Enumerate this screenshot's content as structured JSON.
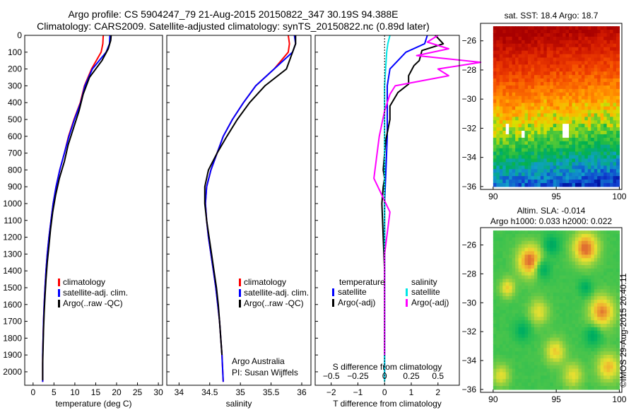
{
  "header": {
    "title_line1": "Argo profile: CS 5904247_79 21-Aug-2015 20150822_347 30.19S 94.388E",
    "title_line2": "Climatology: CARS2009. Satellite-adjusted climatology: synTS_20150822.nc (0.89d later)"
  },
  "colors": {
    "climatology": "#ff0000",
    "satellite": "#0000ff",
    "argo": "#000000",
    "s_satellite": "#00e5e5",
    "s_argo": "#ff00ff"
  },
  "chart_data": [
    {
      "type": "line",
      "id": "temperature",
      "xlabel": "temperature (deg C)",
      "ylabel": "",
      "xlim": [
        -2,
        31
      ],
      "ylim": [
        2080,
        0
      ],
      "xticks": [
        0,
        5,
        10,
        15,
        20,
        25,
        30
      ],
      "yticks": [
        0,
        100,
        200,
        300,
        400,
        500,
        600,
        700,
        800,
        900,
        1000,
        1100,
        1200,
        1300,
        1400,
        1500,
        1600,
        1700,
        1800,
        1900,
        2000
      ],
      "legend": [
        "climatology",
        "satellite-adj. clim.",
        "Argo(..raw -QC)"
      ],
      "series": [
        {
          "name": "climatology",
          "color": "#ff0000",
          "x": [
            16.8,
            16.7,
            16.3,
            14.0,
            12.3,
            11.3,
            9.8,
            8.5,
            7.5,
            6.4,
            5.5,
            4.8,
            4.3,
            3.8,
            3.4,
            3.1,
            2.85,
            2.65,
            2.5,
            2.4,
            2.3,
            2.3
          ],
          "y": [
            0,
            50,
            100,
            200,
            300,
            400,
            500,
            600,
            700,
            800,
            900,
            1000,
            1100,
            1200,
            1300,
            1400,
            1500,
            1600,
            1700,
            1800,
            1900,
            2060
          ]
        },
        {
          "name": "satellite-adj. clim.",
          "color": "#0000ff",
          "x": [
            18.4,
            18.3,
            17.5,
            14.2,
            12.4,
            11.4,
            9.9,
            8.6,
            7.5,
            6.4,
            5.5,
            4.8,
            4.3,
            3.8,
            3.4,
            3.1,
            2.85,
            2.65,
            2.5,
            2.4,
            2.3,
            2.3
          ],
          "y": [
            0,
            50,
            100,
            200,
            300,
            400,
            500,
            600,
            700,
            800,
            900,
            1000,
            1100,
            1200,
            1300,
            1400,
            1500,
            1600,
            1700,
            1800,
            1900,
            2060
          ]
        },
        {
          "name": "Argo(..raw -QC)",
          "color": "#000000",
          "x": [
            18.7,
            18.6,
            18.0,
            16.5,
            13.5,
            12.0,
            11.0,
            9.7,
            8.4,
            7.5,
            6.3,
            5.4,
            4.7,
            4.2,
            3.8,
            3.4,
            3.1,
            2.85,
            2.65,
            2.5,
            2.4,
            2.3,
            2.3
          ],
          "y": [
            0,
            30,
            80,
            150,
            250,
            350,
            450,
            550,
            650,
            750,
            850,
            950,
            1050,
            1150,
            1250,
            1350,
            1450,
            1550,
            1650,
            1750,
            1850,
            1950,
            2050
          ]
        }
      ]
    },
    {
      "type": "line",
      "id": "salinity",
      "xlabel": "salinity",
      "ylabel": "",
      "xlim": [
        33.8,
        36.15
      ],
      "ylim": [
        2080,
        0
      ],
      "xticks": [
        34,
        34.5,
        35,
        35.5,
        36
      ],
      "legend": [
        "climatology",
        "satellite-adj. clim.",
        "Argo(..raw -QC)"
      ],
      "annotations": [
        "Argo Australia",
        "PI: Susan Wijffels"
      ],
      "series": [
        {
          "name": "climatology",
          "color": "#ff0000",
          "x": [
            35.78,
            35.8,
            35.78,
            35.55,
            35.25,
            35.05,
            34.87,
            34.72,
            34.62,
            34.52,
            34.45,
            34.43,
            34.45,
            34.48,
            34.52,
            34.56,
            34.6,
            34.63,
            34.66,
            34.68,
            34.7,
            34.72
          ],
          "y": [
            0,
            50,
            100,
            200,
            300,
            400,
            500,
            600,
            700,
            800,
            900,
            1000,
            1100,
            1200,
            1300,
            1400,
            1500,
            1600,
            1700,
            1800,
            1900,
            2060
          ]
        },
        {
          "name": "satellite-adj. clim.",
          "color": "#0000ff",
          "x": [
            35.88,
            35.9,
            35.85,
            35.55,
            35.25,
            35.05,
            34.87,
            34.72,
            34.62,
            34.52,
            34.45,
            34.43,
            34.45,
            34.48,
            34.52,
            34.56,
            34.6,
            34.63,
            34.66,
            34.68,
            34.7,
            34.72
          ],
          "y": [
            0,
            50,
            100,
            200,
            300,
            400,
            500,
            600,
            700,
            800,
            900,
            1000,
            1100,
            1200,
            1300,
            1400,
            1500,
            1600,
            1700,
            1800,
            1900,
            2060
          ]
        },
        {
          "name": "Argo(..raw -QC)",
          "color": "#000000",
          "x": [
            35.9,
            35.9,
            35.85,
            35.75,
            35.4,
            35.15,
            34.95,
            34.78,
            34.62,
            34.48,
            34.42,
            34.42,
            34.45,
            34.49,
            34.53,
            34.57,
            34.61,
            34.64,
            34.66,
            34.68,
            34.7
          ],
          "y": [
            0,
            50,
            100,
            200,
            300,
            400,
            500,
            600,
            700,
            800,
            900,
            1000,
            1100,
            1200,
            1300,
            1400,
            1500,
            1600,
            1700,
            1800,
            1900
          ]
        }
      ]
    },
    {
      "type": "line",
      "id": "difference",
      "xlabel": "T difference from climatology",
      "xlabel_top": "S difference from climatology",
      "xlim": [
        -2.6,
        2.8
      ],
      "ylim": [
        2080,
        0
      ],
      "xticks": [
        -2,
        -1,
        0,
        1,
        2
      ],
      "xticks_top": [
        -0.5,
        -0.25,
        0,
        0.25,
        0.5
      ],
      "legend_headers": [
        "temperature",
        "salinity"
      ],
      "legend": [
        "satellite",
        "Argo(-adj)",
        "satellite",
        "Argo(-adj)"
      ],
      "series": [
        {
          "name": "T satellite",
          "color": "#0000ff",
          "x": [
            1.6,
            1.5,
            0.8,
            0.2,
            0.1,
            0.1,
            0.1,
            0.05,
            0,
            0,
            0,
            0,
            0,
            0,
            0,
            0
          ],
          "y": [
            0,
            50,
            100,
            200,
            300,
            400,
            600,
            800,
            1000,
            1200,
            1400,
            1600,
            1800,
            1900,
            2000,
            2050
          ]
        },
        {
          "name": "T Argo(-adj)",
          "color": "#000000",
          "x": [
            1.9,
            2.2,
            1.4,
            1.3,
            1.1,
            0.9,
            0.9,
            0.5,
            0.2,
            0.2,
            0.05,
            0.0,
            -0.05,
            0,
            -0.05,
            -0.1,
            -0.05,
            0
          ],
          "y": [
            0,
            50,
            90,
            150,
            180,
            240,
            290,
            340,
            420,
            500,
            620,
            700,
            800,
            850,
            900,
            1000,
            1200,
            1400
          ]
        },
        {
          "name": "S satellite",
          "color": "#00e5e5",
          "x": [
            0.05,
            0.03,
            0.02,
            0.0,
            0.0,
            0.0,
            0.0,
            0.0,
            0.0,
            0.0,
            0.0
          ],
          "y": [
            0,
            50,
            100,
            300,
            500,
            800,
            1000,
            1300,
            1600,
            1900,
            2060
          ]
        },
        {
          "name": "S Argo(-adj)",
          "color": "#ff00ff",
          "x": [
            0.5,
            0.4,
            0.6,
            0.3,
            0.9,
            0.5,
            0.6,
            0.1,
            0.05,
            0.0,
            -0.05,
            -0.1,
            0.05,
            0.0,
            0.0,
            0.0
          ],
          "y": [
            0,
            40,
            80,
            120,
            160,
            200,
            240,
            300,
            350,
            450,
            600,
            850,
            1050,
            1300,
            1600,
            1900
          ]
        }
      ]
    },
    {
      "type": "heatmap",
      "id": "sst_map",
      "title": "sat. SST: 18.4  Argo: 18.7",
      "xlim": [
        89,
        100.2
      ],
      "ylim": [
        -36.2,
        -24.8
      ],
      "xticks": [
        90,
        95,
        100
      ],
      "yticks": [
        -26,
        -28,
        -30,
        -32,
        -34,
        -36
      ]
    },
    {
      "type": "heatmap",
      "id": "sla_map",
      "title_line1": "Altim. SLA: -0.014",
      "title_line2": "Argo h1000: 0.033 h2000: 0.022",
      "xlim": [
        89,
        100.2
      ],
      "ylim": [
        -36.2,
        -24.8
      ],
      "xticks": [
        90,
        95,
        100
      ],
      "yticks": [
        -26,
        -28,
        -30,
        -32,
        -34,
        -36
      ]
    }
  ],
  "footer": {
    "stamp": "©IMOS 29-Aug-2015 20:40:11"
  }
}
